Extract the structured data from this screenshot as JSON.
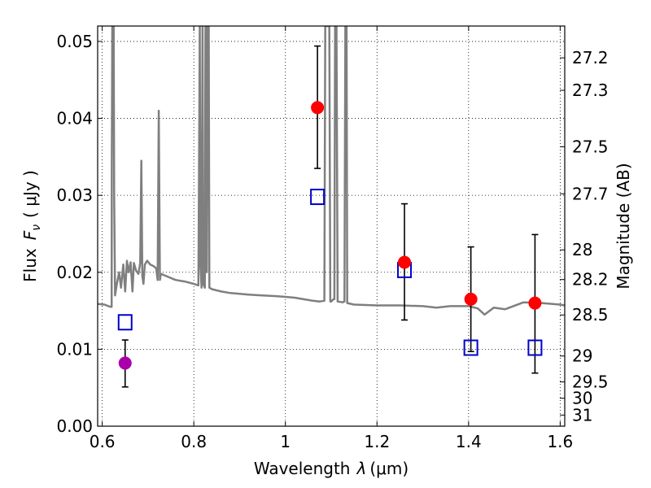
{
  "chart_data": {
    "type": "scatter",
    "xlabel_prefix": "Wavelength",
    "xlabel_symbol": "λ",
    "xlabel_unit": "(μm)",
    "ylabel_prefix": "Flux",
    "ylabel_symbol": "F",
    "ylabel_subscript": "ν",
    "ylabel_unit": "( μJy )",
    "y2label": "Magnitude (AB)",
    "xlim": [
      0.59,
      1.61
    ],
    "ylim": [
      0.0,
      0.052
    ],
    "x_ticks": [
      0.6,
      0.8,
      1.0,
      1.2,
      1.4,
      1.6
    ],
    "x_tick_labels": [
      "0.6",
      "0.8",
      "1",
      "1.2",
      "1.4",
      "1.6"
    ],
    "y_ticks": [
      0.0,
      0.01,
      0.02,
      0.03,
      0.04,
      0.05
    ],
    "y_tick_labels": [
      "0.00",
      "0.01",
      "0.02",
      "0.03",
      "0.04",
      "0.05"
    ],
    "mag_ticks": [
      27.2,
      27.3,
      27.5,
      27.7,
      28,
      28.2,
      28.5,
      29,
      29.5,
      30,
      31
    ],
    "mag_tick_labels": [
      "27.2",
      "27.3",
      "27.5",
      "27.7",
      "28",
      "28.2",
      "28.5",
      "29",
      "29.5",
      "30",
      "31"
    ],
    "grid": true,
    "colors": {
      "observed": "#ff0000",
      "observed_first": "#aa00aa",
      "model_box": "#0000cc",
      "sed": "#7f7f7f",
      "errorbar": "#000000"
    },
    "observed": [
      {
        "x": 0.65,
        "y": 0.0082,
        "err_low": 0.0051,
        "err_high": 0.0112
      },
      {
        "x": 1.07,
        "y": 0.0414,
        "err_low": 0.0335,
        "err_high": 0.0494
      },
      {
        "x": 1.26,
        "y": 0.0213,
        "err_low": 0.0138,
        "err_high": 0.0289
      },
      {
        "x": 1.405,
        "y": 0.0165,
        "err_low": 0.0097,
        "err_high": 0.0233
      },
      {
        "x": 1.545,
        "y": 0.016,
        "err_low": 0.0069,
        "err_high": 0.0249
      }
    ],
    "model_photometry": [
      {
        "x": 0.65,
        "y": 0.0135
      },
      {
        "x": 1.07,
        "y": 0.0298
      },
      {
        "x": 1.26,
        "y": 0.0203
      },
      {
        "x": 1.405,
        "y": 0.0102
      },
      {
        "x": 1.545,
        "y": 0.0102
      }
    ],
    "sed": [
      [
        0.59,
        0.0159
      ],
      [
        0.605,
        0.0158
      ],
      [
        0.618,
        0.0155
      ],
      [
        0.6205,
        0.0155
      ],
      [
        0.621,
        0.034
      ],
      [
        0.622,
        0.052
      ],
      [
        0.625,
        0.052
      ],
      [
        0.626,
        0.03
      ],
      [
        0.628,
        0.017
      ],
      [
        0.632,
        0.0185
      ],
      [
        0.637,
        0.02
      ],
      [
        0.641,
        0.018
      ],
      [
        0.646,
        0.021
      ],
      [
        0.65,
        0.0175
      ],
      [
        0.654,
        0.0215
      ],
      [
        0.658,
        0.02
      ],
      [
        0.662,
        0.0213
      ],
      [
        0.666,
        0.0175
      ],
      [
        0.669,
        0.0212
      ],
      [
        0.674,
        0.0202
      ],
      [
        0.679,
        0.0198
      ],
      [
        0.683,
        0.0212
      ],
      [
        0.6855,
        0.0345
      ],
      [
        0.6875,
        0.0195
      ],
      [
        0.69,
        0.0185
      ],
      [
        0.693,
        0.021
      ],
      [
        0.698,
        0.0215
      ],
      [
        0.705,
        0.021
      ],
      [
        0.712,
        0.0208
      ],
      [
        0.718,
        0.0205
      ],
      [
        0.721,
        0.019
      ],
      [
        0.7235,
        0.041
      ],
      [
        0.726,
        0.019
      ],
      [
        0.728,
        0.0198
      ],
      [
        0.74,
        0.0195
      ],
      [
        0.76,
        0.019
      ],
      [
        0.78,
        0.0188
      ],
      [
        0.8,
        0.0185
      ],
      [
        0.81,
        0.0183
      ],
      [
        0.813,
        0.052
      ],
      [
        0.8145,
        0.021
      ],
      [
        0.817,
        0.018
      ],
      [
        0.819,
        0.052
      ],
      [
        0.8205,
        0.0185
      ],
      [
        0.824,
        0.018
      ],
      [
        0.8255,
        0.052
      ],
      [
        0.827,
        0.052
      ],
      [
        0.8285,
        0.02
      ],
      [
        0.8305,
        0.052
      ],
      [
        0.8325,
        0.052
      ],
      [
        0.834,
        0.018
      ],
      [
        0.84,
        0.0178
      ],
      [
        0.86,
        0.0175
      ],
      [
        0.88,
        0.0173
      ],
      [
        0.9,
        0.0172
      ],
      [
        0.92,
        0.0171
      ],
      [
        0.95,
        0.017
      ],
      [
        0.98,
        0.0169
      ],
      [
        1.0,
        0.0168
      ],
      [
        1.02,
        0.0167
      ],
      [
        1.04,
        0.0165
      ],
      [
        1.06,
        0.0163
      ],
      [
        1.075,
        0.0162
      ],
      [
        1.085,
        0.0163
      ],
      [
        1.087,
        0.052
      ],
      [
        1.096,
        0.052
      ],
      [
        1.098,
        0.0162
      ],
      [
        1.1,
        0.0162
      ],
      [
        1.105,
        0.0165
      ],
      [
        1.107,
        0.0165
      ],
      [
        1.1085,
        0.052
      ],
      [
        1.1115,
        0.052
      ],
      [
        1.114,
        0.0162
      ],
      [
        1.125,
        0.0161
      ],
      [
        1.129,
        0.0162
      ],
      [
        1.131,
        0.052
      ],
      [
        1.1335,
        0.052
      ],
      [
        1.135,
        0.016
      ],
      [
        1.15,
        0.0158
      ],
      [
        1.2,
        0.0157
      ],
      [
        1.25,
        0.0157
      ],
      [
        1.3,
        0.0156
      ],
      [
        1.33,
        0.0154
      ],
      [
        1.36,
        0.0156
      ],
      [
        1.4,
        0.0156
      ],
      [
        1.42,
        0.0153
      ],
      [
        1.435,
        0.0145
      ],
      [
        1.455,
        0.0154
      ],
      [
        1.48,
        0.0152
      ],
      [
        1.52,
        0.0161
      ],
      [
        1.56,
        0.016
      ],
      [
        1.6,
        0.0158
      ],
      [
        1.61,
        0.0157
      ]
    ]
  }
}
